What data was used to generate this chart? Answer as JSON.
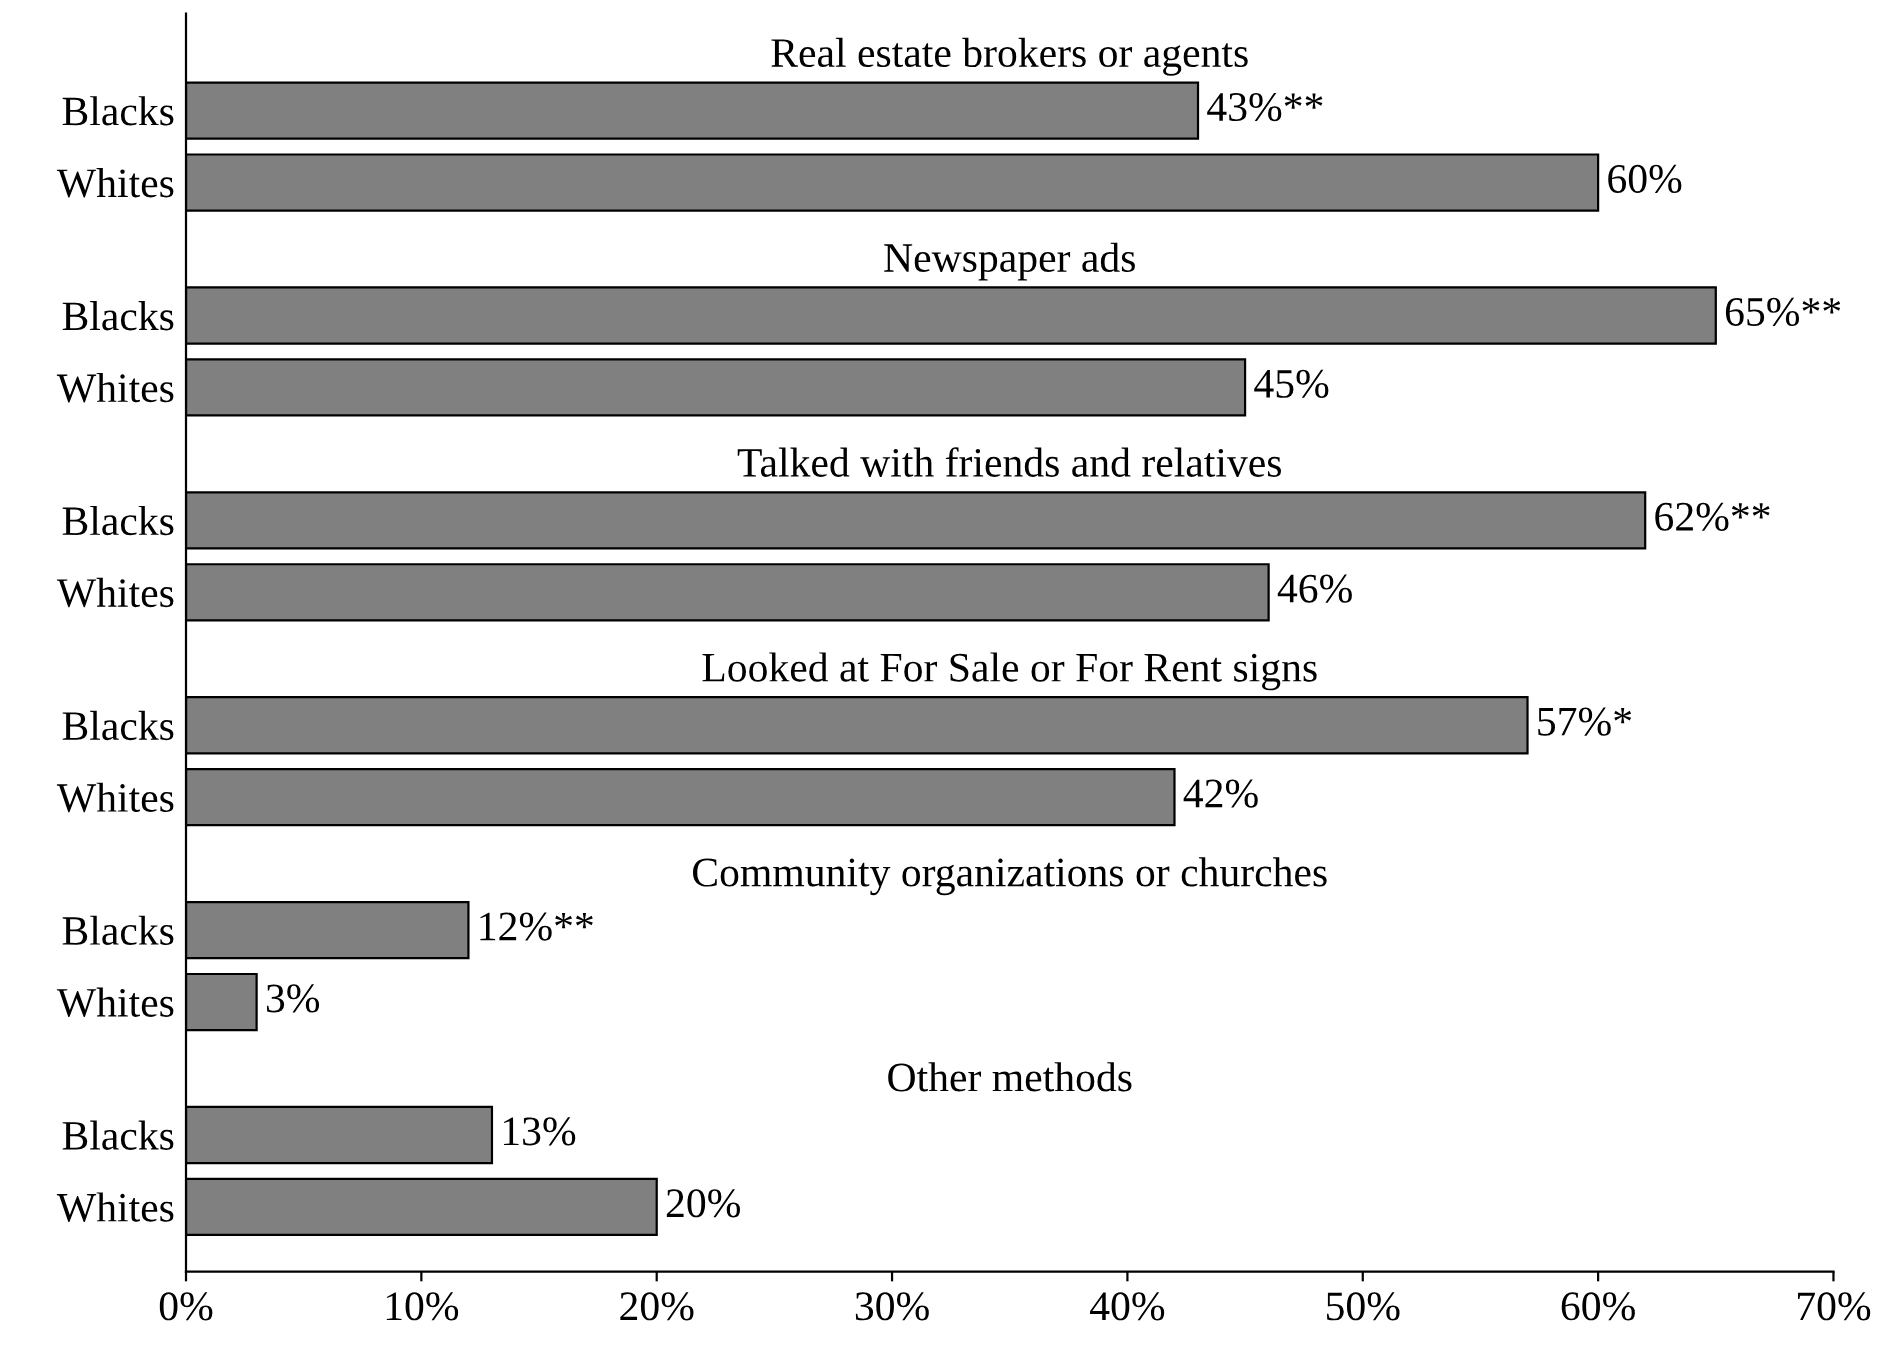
{
  "chart_data": {
    "type": "bar",
    "orientation": "horizontal",
    "categories": [
      "Blacks",
      "Whites",
      "Blacks",
      "Whites",
      "Blacks",
      "Whites",
      "Blacks",
      "Whites",
      "Blacks",
      "Whites",
      "Blacks",
      "Whites"
    ],
    "series": [
      {
        "color": "#808080",
        "values": [
          43,
          60,
          65,
          45,
          62,
          46,
          57,
          42,
          12,
          3,
          13,
          20
        ],
        "value_labels": [
          "43%**",
          "60%",
          "65%**",
          "45%",
          "62%**",
          "46%",
          "57%*",
          "42%",
          "12%**",
          "3%",
          "13%",
          "20%"
        ]
      }
    ],
    "annotations": [
      "Real estate brokers or agents",
      "Newspaper ads",
      "Talked with friends and relatives",
      "Looked at For Sale or For Rent signs",
      "Community organizations or churches",
      "Other methods"
    ],
    "xlim": [
      0,
      70
    ],
    "xticks": [
      {
        "value": 0,
        "label": "0%"
      },
      {
        "value": 10,
        "label": "10%"
      },
      {
        "value": 20,
        "label": "20%"
      },
      {
        "value": 30,
        "label": "30%"
      },
      {
        "value": 40,
        "label": "40%"
      },
      {
        "value": 50,
        "label": "50%"
      },
      {
        "value": 60,
        "label": "60%"
      },
      {
        "value": 70,
        "label": "70%"
      }
    ],
    "grid": false,
    "legend": false
  }
}
